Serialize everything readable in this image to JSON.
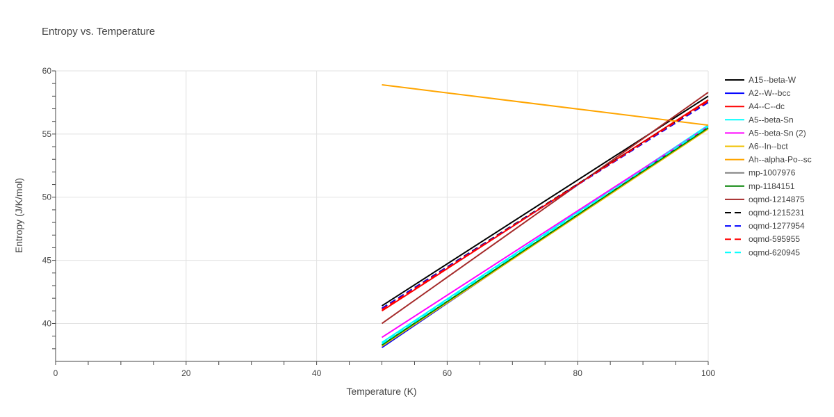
{
  "chart_data": {
    "type": "line",
    "title": "Entropy vs. Temperature",
    "xlabel": "Temperature (K)",
    "ylabel": "Entropy (J/K/mol)",
    "xlim": [
      0,
      100
    ],
    "ylim": [
      37,
      60
    ],
    "x_ticks": [
      0,
      20,
      40,
      60,
      80,
      100
    ],
    "y_ticks": [
      40,
      45,
      50,
      55,
      60
    ],
    "grid": true,
    "legend_position": "right",
    "series": [
      {
        "name": "A15--beta-W",
        "color": "#000000",
        "dash": "solid",
        "x": [
          50,
          100
        ],
        "y": [
          41.4,
          58.0
        ]
      },
      {
        "name": "A2--W--bcc",
        "color": "#0000ff",
        "dash": "solid",
        "x": [
          50,
          100
        ],
        "y": [
          38.1,
          55.6
        ]
      },
      {
        "name": "A4--C--dc",
        "color": "#ff0000",
        "dash": "solid",
        "x": [
          50,
          100
        ],
        "y": [
          41.0,
          57.7
        ]
      },
      {
        "name": "A5--beta-Sn",
        "color": "#00ffff",
        "dash": "solid",
        "x": [
          50,
          100
        ],
        "y": [
          38.5,
          55.7
        ]
      },
      {
        "name": "A5--beta-Sn (2)",
        "color": "#ff00ff",
        "dash": "solid",
        "x": [
          50,
          100
        ],
        "y": [
          38.9,
          55.6
        ]
      },
      {
        "name": "A6--In--bct",
        "color": "#f0c000",
        "dash": "solid",
        "x": [
          50,
          100
        ],
        "y": [
          38.2,
          55.4
        ]
      },
      {
        "name": "Ah--alpha-Po--sc",
        "color": "#ffa500",
        "dash": "solid",
        "x": [
          50,
          100
        ],
        "y": [
          58.9,
          55.7
        ]
      },
      {
        "name": "mp-1007976",
        "color": "#808080",
        "dash": "solid",
        "x": [
          50,
          100
        ],
        "y": [
          38.3,
          55.5
        ]
      },
      {
        "name": "mp-1184151",
        "color": "#008000",
        "dash": "solid",
        "x": [
          50,
          100
        ],
        "y": [
          38.3,
          55.5
        ]
      },
      {
        "name": "oqmd-1214875",
        "color": "#a52a2a",
        "dash": "solid",
        "x": [
          50,
          100
        ],
        "y": [
          40.0,
          58.3
        ]
      },
      {
        "name": "oqmd-1215231",
        "color": "#000000",
        "dash": "dash",
        "x": [
          50,
          100
        ],
        "y": [
          41.2,
          57.6
        ]
      },
      {
        "name": "oqmd-1277954",
        "color": "#0000ff",
        "dash": "dash",
        "x": [
          50,
          100
        ],
        "y": [
          41.2,
          57.5
        ]
      },
      {
        "name": "oqmd-595955",
        "color": "#ff0000",
        "dash": "dash",
        "x": [
          50,
          100
        ],
        "y": [
          41.1,
          57.6
        ]
      },
      {
        "name": "oqmd-620945",
        "color": "#00ffff",
        "dash": "dash",
        "x": [
          50,
          100
        ],
        "y": [
          38.4,
          55.6
        ]
      }
    ]
  }
}
